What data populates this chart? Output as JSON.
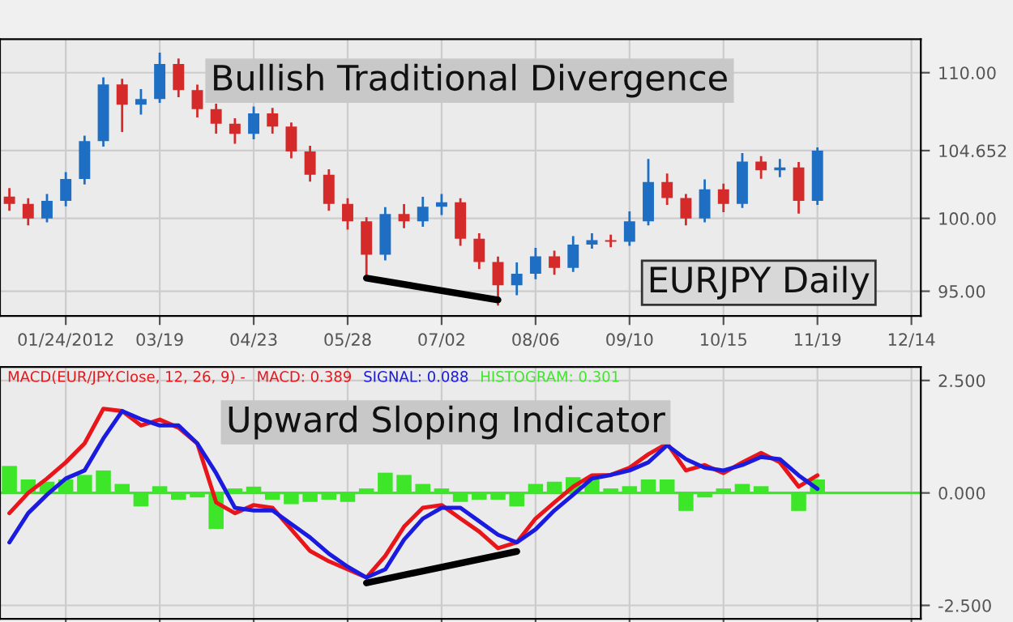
{
  "chart_data": [
    {
      "type": "candlestick",
      "categories": [
        null,
        null,
        null,
        "01/24/2012",
        null,
        null,
        null,
        null,
        "03/19",
        null,
        null,
        null,
        null,
        "04/23",
        null,
        null,
        null,
        null,
        "05/28",
        null,
        null,
        null,
        null,
        "07/02",
        null,
        null,
        null,
        null,
        "08/06",
        null,
        null,
        null,
        null,
        "09/10",
        null,
        null,
        null,
        null,
        "10/15",
        null,
        null,
        null,
        null,
        "11/19",
        null,
        null,
        null,
        null,
        "12/14"
      ],
      "ohlc": [
        [
          101.5,
          102.0,
          100.6,
          101.0
        ],
        [
          101.0,
          101.3,
          99.6,
          100.0
        ],
        [
          100.0,
          101.6,
          99.8,
          101.2
        ],
        [
          101.2,
          103.1,
          100.9,
          102.7
        ],
        [
          102.7,
          105.6,
          102.4,
          105.3
        ],
        [
          105.3,
          109.6,
          105.0,
          109.2
        ],
        [
          109.2,
          109.5,
          106.0,
          107.8
        ],
        [
          107.8,
          108.8,
          107.2,
          108.2
        ],
        [
          108.2,
          111.3,
          108.0,
          110.6
        ],
        [
          110.6,
          110.9,
          108.4,
          108.8
        ],
        [
          108.8,
          109.1,
          107.0,
          107.5
        ],
        [
          107.5,
          107.8,
          105.9,
          106.5
        ],
        [
          106.5,
          106.8,
          105.2,
          105.8
        ],
        [
          105.8,
          107.6,
          105.5,
          107.2
        ],
        [
          107.2,
          107.5,
          105.9,
          106.3
        ],
        [
          106.3,
          106.5,
          104.2,
          104.6
        ],
        [
          104.6,
          104.9,
          102.6,
          103.0
        ],
        [
          103.0,
          103.3,
          100.6,
          101.0
        ],
        [
          101.0,
          101.3,
          99.3,
          99.8
        ],
        [
          99.8,
          100.0,
          95.8,
          97.5
        ],
        [
          97.5,
          100.7,
          97.2,
          100.3
        ],
        [
          100.3,
          100.9,
          99.4,
          99.8
        ],
        [
          99.8,
          101.4,
          99.5,
          100.8
        ],
        [
          100.8,
          101.6,
          100.3,
          101.1
        ],
        [
          101.1,
          101.3,
          98.2,
          98.6
        ],
        [
          98.6,
          98.9,
          96.6,
          97.0
        ],
        [
          97.0,
          97.3,
          94.1,
          95.4
        ],
        [
          95.4,
          96.9,
          94.8,
          96.2
        ],
        [
          96.2,
          97.9,
          95.9,
          97.4
        ],
        [
          97.4,
          97.7,
          96.2,
          96.6
        ],
        [
          96.6,
          98.7,
          96.4,
          98.2
        ],
        [
          98.2,
          98.9,
          98.0,
          98.5
        ],
        [
          98.5,
          98.8,
          98.1,
          98.4
        ],
        [
          98.4,
          100.4,
          98.2,
          99.8
        ],
        [
          99.8,
          104.0,
          99.6,
          102.5
        ],
        [
          102.5,
          103.0,
          101.0,
          101.4
        ],
        [
          101.4,
          101.6,
          99.6,
          100.0
        ],
        [
          100.0,
          102.6,
          99.8,
          102.0
        ],
        [
          102.0,
          102.3,
          100.5,
          101.0
        ],
        [
          101.0,
          104.4,
          100.8,
          103.9
        ],
        [
          103.9,
          104.2,
          102.8,
          103.3
        ],
        [
          103.3,
          104.0,
          102.9,
          103.5
        ],
        [
          103.5,
          103.8,
          100.4,
          101.2
        ],
        [
          101.2,
          104.8,
          101.0,
          104.652
        ],
        null,
        null,
        null,
        null,
        null
      ],
      "colors": [
        "#d42a2a",
        "#d42a2a",
        "#1e6fc4",
        "#1e6fc4",
        "#1e6fc4",
        "#1e6fc4",
        "#d42a2a",
        "#1e6fc4",
        "#1e6fc4",
        "#d42a2a",
        "#d42a2a",
        "#d42a2a",
        "#d42a2a",
        "#1e6fc4",
        "#d42a2a",
        "#d42a2a",
        "#d42a2a",
        "#d42a2a",
        "#d42a2a",
        "#d42a2a",
        "#1e6fc4",
        "#d42a2a",
        "#1e6fc4",
        "#1e6fc4",
        "#d42a2a",
        "#d42a2a",
        "#d42a2a",
        "#1e6fc4",
        "#1e6fc4",
        "#d42a2a",
        "#1e6fc4",
        "#1e6fc4",
        "#d42a2a",
        "#1e6fc4",
        "#1e6fc4",
        "#d42a2a",
        "#d42a2a",
        "#1e6fc4",
        "#d42a2a",
        "#1e6fc4",
        "#d42a2a",
        "#1e6fc4",
        "#d42a2a",
        "#1e6fc4",
        null,
        null,
        null,
        null,
        null
      ],
      "series": [
        {
          "type": "line",
          "color": "#000000",
          "values": [
            null,
            null,
            null,
            null,
            null,
            null,
            null,
            null,
            null,
            null,
            null,
            null,
            null,
            null,
            null,
            null,
            null,
            null,
            null,
            95.9,
            null,
            null,
            null,
            null,
            null,
            null,
            94.4,
            null,
            null,
            null,
            null,
            null,
            null,
            null,
            null,
            null,
            null,
            null,
            null,
            null,
            null,
            null,
            null,
            null,
            null,
            null,
            null,
            null,
            null
          ]
        }
      ],
      "ylim": [
        93.3,
        112.3
      ],
      "yticks": [
        {
          "value": 95,
          "label": "95.00"
        },
        {
          "value": 100,
          "label": "100.00"
        },
        {
          "value": 104.652,
          "label": "104.652"
        },
        {
          "value": 110,
          "label": "110.00"
        }
      ],
      "annotations": [
        "Bullish Traditional Divergence",
        "EURJPY Daily"
      ],
      "grid": true
    },
    {
      "type": "line",
      "title": "MACD(EUR/JPY.Close, 12, 26, 9) -",
      "categories": [
        null,
        null,
        null,
        null,
        null,
        null,
        null,
        null,
        null,
        null,
        null,
        null,
        null,
        null,
        null,
        null,
        null,
        null,
        null,
        null,
        null,
        null,
        null,
        null,
        null,
        null,
        null,
        null,
        null,
        null,
        null,
        null,
        null,
        null,
        null,
        null,
        null,
        null,
        null,
        null,
        null,
        null,
        null,
        null,
        null,
        null,
        null,
        null,
        null
      ],
      "series": [
        {
          "type": "bar",
          "name": "HISTOGRAM: 0.301",
          "color": "#3ee62a",
          "values": [
            0.6,
            0.3,
            0.25,
            0.3,
            0.4,
            0.5,
            0.2,
            -0.3,
            0.15,
            -0.15,
            -0.1,
            -0.8,
            0.1,
            0.14,
            -0.15,
            -0.25,
            -0.2,
            -0.15,
            -0.2,
            0.1,
            0.45,
            0.4,
            0.2,
            0.1,
            -0.2,
            -0.15,
            -0.15,
            -0.3,
            0.2,
            0.25,
            0.35,
            0.3,
            0.1,
            0.15,
            0.3,
            0.3,
            -0.4,
            -0.1,
            0.1,
            0.2,
            0.15,
            0.0,
            -0.4,
            0.3,
            null,
            null,
            null,
            null,
            null
          ]
        },
        {
          "type": "line",
          "name": "MACD: 0.389",
          "color": "#e8161b",
          "values": [
            -0.45,
            0.0,
            0.32,
            0.68,
            1.1,
            1.87,
            1.82,
            1.5,
            1.63,
            1.45,
            1.1,
            -0.21,
            -0.45,
            -0.27,
            -0.33,
            -0.81,
            -1.29,
            -1.52,
            -1.7,
            -1.88,
            -1.4,
            -0.75,
            -0.33,
            -0.27,
            -0.57,
            -0.86,
            -1.23,
            -1.1,
            -0.57,
            -0.21,
            0.14,
            0.39,
            0.4,
            0.56,
            0.86,
            1.1,
            0.5,
            0.62,
            0.44,
            0.68,
            0.89,
            0.68,
            0.14,
            0.39,
            null,
            null,
            null,
            null,
            null
          ]
        },
        {
          "type": "line",
          "name": "SIGNAL: 0.088",
          "color": "#1b1be0",
          "values": [
            -1.1,
            -0.45,
            -0.04,
            0.32,
            0.5,
            1.21,
            1.82,
            1.64,
            1.5,
            1.5,
            1.1,
            0.44,
            -0.33,
            -0.39,
            -0.39,
            -0.69,
            -0.99,
            -1.35,
            -1.64,
            -1.88,
            -1.7,
            -1.04,
            -0.57,
            -0.33,
            -0.33,
            -0.63,
            -0.93,
            -1.1,
            -0.81,
            -0.39,
            -0.04,
            0.32,
            0.4,
            0.5,
            0.68,
            1.06,
            0.75,
            0.56,
            0.5,
            0.62,
            0.8,
            0.75,
            0.39,
            0.09,
            null,
            null,
            null,
            null,
            null
          ]
        },
        {
          "type": "line",
          "color": "#000000",
          "values": [
            null,
            null,
            null,
            null,
            null,
            null,
            null,
            null,
            null,
            null,
            null,
            null,
            null,
            null,
            null,
            null,
            null,
            null,
            null,
            -2.0,
            null,
            null,
            null,
            null,
            null,
            null,
            null,
            -1.3,
            null,
            null,
            null,
            null,
            null,
            null,
            null,
            null,
            null,
            null,
            null,
            null,
            null,
            null,
            null,
            null,
            null,
            null,
            null,
            null,
            null
          ]
        }
      ],
      "ylim": [
        -2.8,
        2.8
      ],
      "yticks": [
        {
          "value": -2.5,
          "label": "-2.500"
        },
        {
          "value": 0,
          "label": "0.000"
        },
        {
          "value": 2.5,
          "label": "2.500"
        }
      ],
      "ref_lines": [
        {
          "axis": "y",
          "value": 0,
          "color": "#3ee62a"
        }
      ],
      "annotations": [
        "Upward Sloping Indicator"
      ],
      "tick_labels": "y",
      "grid": true
    }
  ]
}
